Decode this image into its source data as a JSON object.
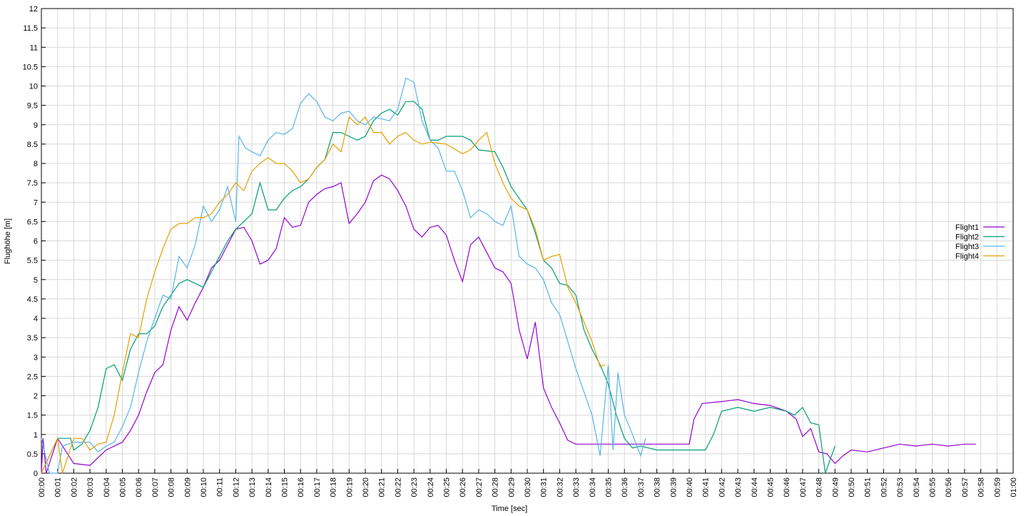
{
  "chart_data": {
    "type": "line",
    "xlabel": "Time [sec]",
    "ylabel": "Flughöhe [m]",
    "xlim": [
      0,
      60
    ],
    "ylim": [
      0,
      12
    ],
    "grid": true,
    "legend": "right",
    "xticks": [
      {
        "value": 0,
        "label": "00:00"
      },
      {
        "value": 1,
        "label": "00:01"
      },
      {
        "value": 2,
        "label": "00:02"
      },
      {
        "value": 3,
        "label": "00:03"
      },
      {
        "value": 4,
        "label": "00:04"
      },
      {
        "value": 5,
        "label": "00:05"
      },
      {
        "value": 6,
        "label": "00:06"
      },
      {
        "value": 7,
        "label": "00:07"
      },
      {
        "value": 8,
        "label": "00:08"
      },
      {
        "value": 9,
        "label": "00:09"
      },
      {
        "value": 10,
        "label": "00:10"
      },
      {
        "value": 11,
        "label": "00:11"
      },
      {
        "value": 12,
        "label": "00:12"
      },
      {
        "value": 13,
        "label": "00:13"
      },
      {
        "value": 14,
        "label": "00:14"
      },
      {
        "value": 15,
        "label": "00:15"
      },
      {
        "value": 16,
        "label": "00:16"
      },
      {
        "value": 17,
        "label": "00:17"
      },
      {
        "value": 18,
        "label": "00:18"
      },
      {
        "value": 19,
        "label": "00:19"
      },
      {
        "value": 20,
        "label": "00:20"
      },
      {
        "value": 21,
        "label": "00:21"
      },
      {
        "value": 22,
        "label": "00:22"
      },
      {
        "value": 23,
        "label": "00:23"
      },
      {
        "value": 24,
        "label": "00:24"
      },
      {
        "value": 25,
        "label": "00:25"
      },
      {
        "value": 26,
        "label": "00:26"
      },
      {
        "value": 27,
        "label": "00:27"
      },
      {
        "value": 28,
        "label": "00:28"
      },
      {
        "value": 29,
        "label": "00:29"
      },
      {
        "value": 30,
        "label": "00:30"
      },
      {
        "value": 31,
        "label": "00:31"
      },
      {
        "value": 32,
        "label": "00:32"
      },
      {
        "value": 33,
        "label": "00:33"
      },
      {
        "value": 34,
        "label": "00:34"
      },
      {
        "value": 35,
        "label": "00:35"
      },
      {
        "value": 36,
        "label": "00:36"
      },
      {
        "value": 37,
        "label": "00:37"
      },
      {
        "value": 38,
        "label": "00:38"
      },
      {
        "value": 39,
        "label": "00:39"
      },
      {
        "value": 40,
        "label": "00:40"
      },
      {
        "value": 41,
        "label": "00:41"
      },
      {
        "value": 42,
        "label": "00:42"
      },
      {
        "value": 43,
        "label": "00:43"
      },
      {
        "value": 44,
        "label": "00:44"
      },
      {
        "value": 45,
        "label": "00:45"
      },
      {
        "value": 46,
        "label": "00:46"
      },
      {
        "value": 47,
        "label": "00:47"
      },
      {
        "value": 48,
        "label": "00:48"
      },
      {
        "value": 49,
        "label": "00:49"
      },
      {
        "value": 50,
        "label": "00:50"
      },
      {
        "value": 51,
        "label": "00:51"
      },
      {
        "value": 52,
        "label": "00:52"
      },
      {
        "value": 53,
        "label": "00:53"
      },
      {
        "value": 54,
        "label": "00:54"
      },
      {
        "value": 55,
        "label": "00:55"
      },
      {
        "value": 56,
        "label": "00:56"
      },
      {
        "value": 57,
        "label": "00:57"
      },
      {
        "value": 58,
        "label": "00:58"
      },
      {
        "value": 59,
        "label": "00:59"
      },
      {
        "value": 60,
        "label": "01:00"
      }
    ],
    "yticks": [
      0,
      0.5,
      1,
      1.5,
      2,
      2.5,
      3,
      3.5,
      4,
      4.5,
      5,
      5.5,
      6,
      6.5,
      7,
      7.5,
      8,
      8.5,
      9,
      9.5,
      10,
      10.5,
      11,
      11.5,
      12
    ],
    "series": [
      {
        "name": "Flight1",
        "color": "#9400d3",
        "x": [
          0,
          0.1,
          0.3,
          1,
          2,
          3,
          3.5,
          4,
          4.5,
          5,
          5.5,
          6,
          6.5,
          7,
          7.5,
          8,
          8.5,
          9,
          9.5,
          10,
          10.5,
          11,
          11.5,
          12,
          12.5,
          13,
          13.5,
          14,
          14.5,
          15,
          15.5,
          16,
          16.5,
          17,
          17.5,
          18,
          18.5,
          19,
          19.5,
          20,
          20.5,
          21,
          21.5,
          22,
          22.5,
          23,
          23.5,
          24,
          24.5,
          25,
          25.5,
          26,
          26.5,
          27,
          27.5,
          28,
          28.5,
          29,
          29.5,
          30,
          30.5,
          31,
          31.5,
          32,
          32.5,
          33,
          35,
          37,
          40,
          40.3,
          40.8,
          42,
          43,
          44,
          45,
          46,
          46.6,
          47,
          47.5,
          48,
          48.5,
          49,
          49.5,
          50,
          51,
          52,
          53,
          54,
          55,
          56,
          57,
          57.7
        ],
        "values": [
          0,
          0.9,
          0,
          0.9,
          0.25,
          0.2,
          0.4,
          0.6,
          0.7,
          0.8,
          1.1,
          1.5,
          2.1,
          2.6,
          2.8,
          3.7,
          4.3,
          3.95,
          4.4,
          4.8,
          5.3,
          5.5,
          5.9,
          6.3,
          6.35,
          6,
          5.4,
          5.5,
          5.8,
          6.6,
          6.35,
          6.4,
          7,
          7.2,
          7.35,
          7.4,
          7.5,
          6.45,
          6.7,
          7,
          7.55,
          7.7,
          7.6,
          7.3,
          6.9,
          6.3,
          6.1,
          6.35,
          6.4,
          6.15,
          5.5,
          4.95,
          5.9,
          6.1,
          5.7,
          5.3,
          5.2,
          4.9,
          3.7,
          2.95,
          3.9,
          2.2,
          1.7,
          1.3,
          0.85,
          0.75,
          0.75,
          0.75,
          0.75,
          1.4,
          1.8,
          1.85,
          1.9,
          1.8,
          1.75,
          1.6,
          1.4,
          0.95,
          1.15,
          0.55,
          0.5,
          0.25,
          0.45,
          0.6,
          0.55,
          0.65,
          0.75,
          0.7,
          0.75,
          0.7,
          0.75,
          0.75
        ]
      },
      {
        "name": "Flight2",
        "color": "#009e73",
        "x": [
          0,
          1,
          1.8,
          2,
          2.5,
          3,
          3.5,
          4,
          4.5,
          5,
          5.5,
          6,
          6.5,
          7,
          7.5,
          8,
          8.5,
          9,
          10,
          10.5,
          11,
          11.5,
          12,
          12.5,
          13,
          13.5,
          14,
          14.5,
          15,
          15.5,
          16,
          16.5,
          17,
          17.5,
          18,
          18.5,
          19,
          19.5,
          20,
          20.5,
          21,
          21.5,
          22,
          22.5,
          23,
          23.5,
          24,
          24.5,
          25,
          26,
          26.5,
          27,
          28,
          28.5,
          29,
          29.5,
          30,
          30.5,
          31,
          31.5,
          32,
          32.5,
          33,
          33.5,
          34,
          34.5,
          35,
          35.5,
          36,
          36.5,
          37,
          38,
          39,
          40,
          41,
          41.5,
          42,
          43,
          44,
          45,
          46,
          46.5,
          47,
          47.5,
          48,
          48.4,
          49
        ],
        "values": [
          0,
          0.9,
          0.9,
          0.6,
          0.75,
          1.1,
          1.7,
          2.7,
          2.8,
          2.4,
          3.2,
          3.6,
          3.6,
          3.8,
          4.3,
          4.6,
          4.9,
          5,
          4.8,
          5.2,
          5.6,
          6,
          6.3,
          6.5,
          6.7,
          7.5,
          6.8,
          6.8,
          7.1,
          7.3,
          7.4,
          7.6,
          7.9,
          8.1,
          8.8,
          8.8,
          8.7,
          8.6,
          8.7,
          9.1,
          9.3,
          9.4,
          9.25,
          9.6,
          9.6,
          9.4,
          8.6,
          8.6,
          8.7,
          8.7,
          8.6,
          8.35,
          8.3,
          7.9,
          7.4,
          7.1,
          6.8,
          6.2,
          5.5,
          5.3,
          4.9,
          4.85,
          4.6,
          3.7,
          3.2,
          2.8,
          2.3,
          1.5,
          0.9,
          0.65,
          0.7,
          0.6,
          0.6,
          0.6,
          0.6,
          1,
          1.6,
          1.7,
          1.6,
          1.7,
          1.6,
          1.5,
          1.7,
          1.3,
          1.25,
          0,
          0.7
        ]
      },
      {
        "name": "Flight3",
        "color": "#56b4e9",
        "x": [
          0,
          0.5,
          1,
          1.3,
          2,
          3,
          3.5,
          4,
          4.5,
          5,
          5.5,
          6,
          6.5,
          7,
          7.5,
          8,
          8.5,
          9,
          9.5,
          10,
          10.5,
          11,
          11.5,
          12,
          12.2,
          12.6,
          13,
          13.5,
          14,
          14.5,
          15,
          15.5,
          16,
          16.5,
          17,
          17.5,
          18,
          18.5,
          19,
          19.5,
          20,
          20.5,
          21,
          21.5,
          22,
          22.5,
          23,
          23.5,
          24,
          24.5,
          25,
          25.5,
          26,
          26.5,
          27,
          27.5,
          28,
          28.5,
          29,
          29.5,
          30,
          30.5,
          31,
          31.5,
          32,
          32.5,
          33,
          33.5,
          34,
          34.5,
          35,
          35.3,
          35.6,
          36,
          36.5,
          37,
          37.3
        ],
        "values": [
          0.9,
          0,
          0,
          0.7,
          0.8,
          0.8,
          0.55,
          0.7,
          0.8,
          1.2,
          1.7,
          2.6,
          3.4,
          4,
          4.6,
          4.5,
          5.6,
          5.3,
          5.9,
          6.9,
          6.5,
          6.8,
          7.4,
          6.5,
          8.7,
          8.4,
          8.3,
          8.2,
          8.6,
          8.8,
          8.75,
          8.9,
          9.55,
          9.8,
          9.6,
          9.2,
          9.1,
          9.3,
          9.35,
          9.1,
          9,
          9.2,
          9.15,
          9.1,
          9.4,
          10.2,
          10.1,
          9.1,
          8.6,
          8.4,
          7.8,
          7.8,
          7.3,
          6.6,
          6.8,
          6.7,
          6.5,
          6.4,
          6.9,
          5.6,
          5.4,
          5.3,
          5,
          4.4,
          4.1,
          3.4,
          2.7,
          2.1,
          1.5,
          0.45,
          2.8,
          0.6,
          2.6,
          1.5,
          1,
          0.45,
          0.9
        ]
      },
      {
        "name": "Flight4",
        "color": "#e69f00",
        "x": [
          0,
          1,
          1.3,
          2,
          2.5,
          3,
          3.5,
          4,
          4.5,
          5,
          5.5,
          6,
          6.5,
          7,
          7.5,
          8,
          8.5,
          9,
          9.5,
          10,
          10.5,
          11,
          11.5,
          12,
          12.5,
          13,
          13.5,
          14,
          14.5,
          15,
          15.5,
          16,
          16.5,
          17,
          17.5,
          18,
          18.5,
          19,
          19.5,
          20,
          20.5,
          21,
          21.5,
          22,
          22.5,
          23,
          23.5,
          24,
          25,
          26,
          26.5,
          27,
          27.5,
          28,
          28.5,
          29,
          29.5,
          30,
          30.5,
          31,
          31.5,
          32,
          32.5,
          33,
          33.5,
          34,
          34.5,
          34.8
        ],
        "values": [
          0,
          0.9,
          0,
          0.9,
          0.9,
          0.6,
          0.75,
          0.8,
          1.5,
          2.6,
          3.6,
          3.5,
          4.5,
          5.2,
          5.8,
          6.3,
          6.45,
          6.45,
          6.6,
          6.6,
          6.7,
          7,
          7.2,
          7.5,
          7.3,
          7.8,
          8,
          8.15,
          8,
          8,
          7.8,
          7.5,
          7.6,
          7.9,
          8.1,
          8.5,
          8.3,
          9.2,
          9,
          9.2,
          8.8,
          8.8,
          8.5,
          8.7,
          8.8,
          8.6,
          8.5,
          8.55,
          8.5,
          8.25,
          8.35,
          8.6,
          8.8,
          8,
          7.5,
          7.1,
          6.9,
          6.8,
          6.3,
          5.5,
          5.6,
          5.65,
          4.8,
          4.4,
          3.9,
          3.4,
          2.75,
          2.8
        ]
      }
    ]
  }
}
